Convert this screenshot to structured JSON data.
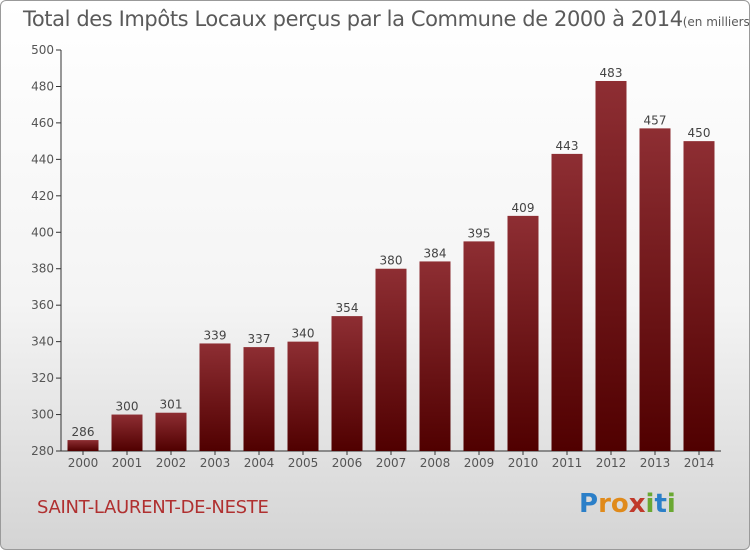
{
  "header": {
    "title": "Total des Impôts Locaux perçus par la Commune de 2000 à 2014",
    "unit": "(en milliers d'€)"
  },
  "footer": {
    "commune": "SAINT-LAURENT-DE-NESTE",
    "logo": "Proxiti"
  },
  "colors": {
    "bar_top": "#8e2e33",
    "bar_bottom": "#500000",
    "commune_text": "#b03030",
    "logo_letters": [
      "#2b7fc8",
      "#e08a1a",
      "#e08a1a",
      "#c0392b",
      "#6aa832",
      "#2b7fc8",
      "#6aa832"
    ]
  },
  "chart_data": {
    "type": "bar",
    "categories": [
      "2000",
      "2001",
      "2002",
      "2003",
      "2004",
      "2005",
      "2006",
      "2007",
      "2008",
      "2009",
      "2010",
      "2011",
      "2012",
      "2013",
      "2014"
    ],
    "values": [
      286,
      300,
      301,
      339,
      337,
      340,
      354,
      380,
      384,
      395,
      409,
      443,
      483,
      457,
      450
    ],
    "title": "Total des Impôts Locaux perçus par la Commune de 2000 à 2014",
    "xlabel": "",
    "ylabel": "",
    "ylim": [
      280,
      500
    ],
    "yticks": [
      280,
      300,
      320,
      340,
      360,
      380,
      400,
      420,
      440,
      460,
      480,
      500
    ],
    "grid": false,
    "legend": "none"
  }
}
